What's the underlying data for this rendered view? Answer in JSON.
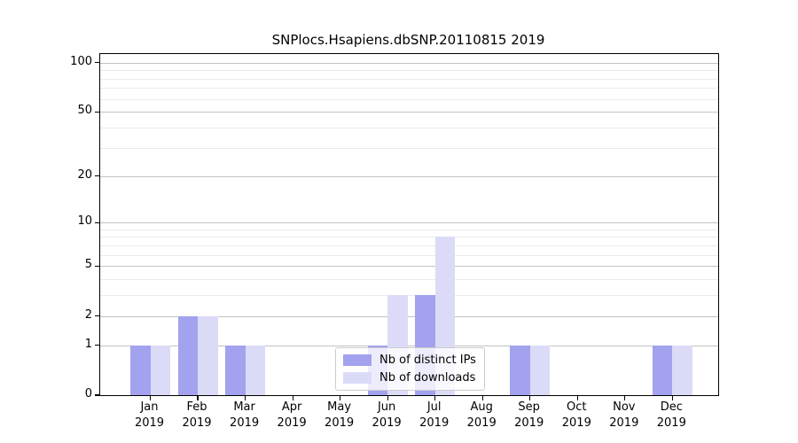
{
  "chart_data": {
    "type": "bar",
    "title": "SNPlocs.Hsapiens.dbSNP.20110815 2019",
    "categories": [
      "Jan",
      "Feb",
      "Mar",
      "Apr",
      "May",
      "Jun",
      "Jul",
      "Aug",
      "Sep",
      "Oct",
      "Nov",
      "Dec"
    ],
    "category_year": "2019",
    "series": [
      {
        "name": "Nb of distinct IPs",
        "color": "#a2a2ee",
        "values": [
          1,
          2,
          1,
          0,
          0,
          1,
          3,
          0,
          1,
          0,
          0,
          1
        ]
      },
      {
        "name": "Nb of downloads",
        "color": "#dbdbf8",
        "values": [
          1,
          2,
          1,
          0,
          0,
          3,
          8,
          0,
          1,
          0,
          0,
          1
        ]
      }
    ],
    "xlabel": "",
    "ylabel": "",
    "y_scale": "log1p",
    "ylim": [
      0,
      113
    ],
    "y_ticks_major": [
      0,
      1,
      2,
      5,
      10,
      20,
      50,
      100
    ],
    "y_ticks_minor": [
      3,
      4,
      6,
      7,
      8,
      9,
      30,
      40,
      60,
      70,
      80,
      90
    ],
    "grid": true,
    "legend_position": "lower center"
  },
  "colors": {
    "grid_major": "#c2c2c2",
    "grid_minor": "#eaeaea",
    "spine": "#000000",
    "background": "#ffffff"
  }
}
